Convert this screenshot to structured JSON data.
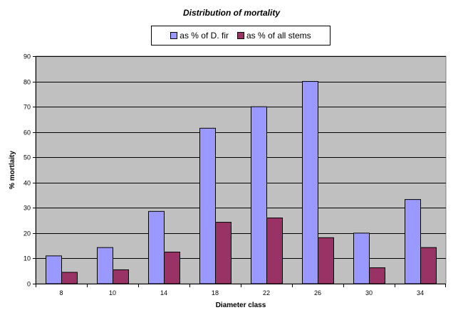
{
  "chart_data": {
    "type": "bar",
    "title": "Distribution of mortality",
    "xlabel": "Diameter class",
    "ylabel": "% mortlaity",
    "categories": [
      "8",
      "10",
      "14",
      "18",
      "22",
      "26",
      "30",
      "34"
    ],
    "series": [
      {
        "name": "as % of D. fir",
        "values": [
          11,
          14.3,
          28.6,
          61.5,
          70,
          80,
          20,
          33.3
        ],
        "color": "#9999ff"
      },
      {
        "name": "as % of all stems",
        "values": [
          4.5,
          5.5,
          12.5,
          24.3,
          26,
          18.2,
          6.3,
          14.3
        ],
        "color": "#993366"
      }
    ],
    "ylim": [
      0,
      90
    ],
    "yticks": [
      0,
      10,
      20,
      30,
      40,
      50,
      60,
      70,
      80,
      90
    ],
    "grid": true,
    "plot_background": "#c0c0c0",
    "legend_position": "top-center"
  }
}
